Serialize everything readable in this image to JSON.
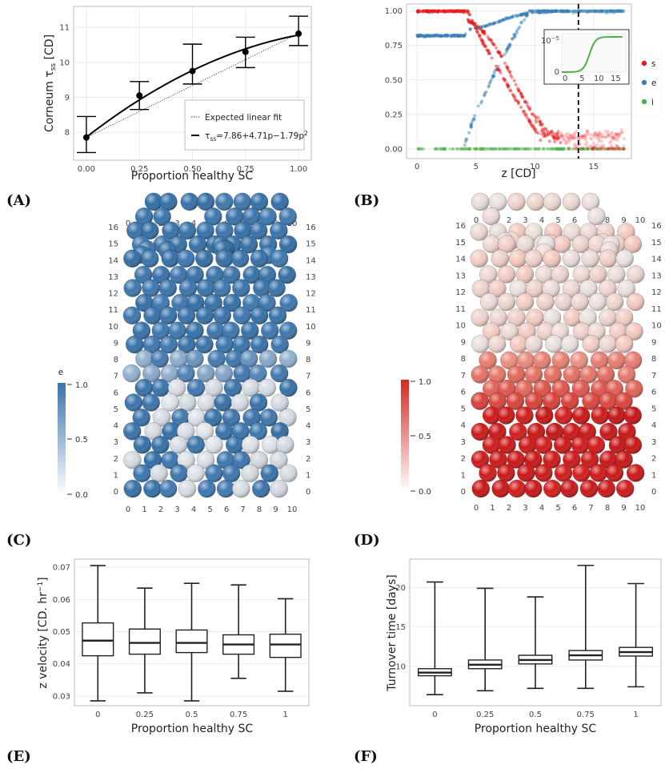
{
  "panel_labels": [
    "(A)",
    "(B)",
    "(C)",
    "(D)",
    "(E)",
    "(F)"
  ],
  "colors": {
    "s": "#e41a1c",
    "e": "#377eb8",
    "i": "#4daf4a",
    "e_scale_top": "#3a73ac",
    "s_scale_top": "#d42a22"
  },
  "chart_data": [
    {
      "id": "A",
      "type": "scatter",
      "xlabel": "Proportion healthy SC",
      "ylabel": "Corneum τ",
      "ylabel_sub": "ss",
      "ylabel_unit": "[CD]",
      "x": [
        0.0,
        0.25,
        0.5,
        0.75,
        1.0
      ],
      "y": [
        7.85,
        9.05,
        9.75,
        10.3,
        10.82
      ],
      "err_low": [
        7.42,
        8.65,
        9.38,
        9.85,
        10.48
      ],
      "err_high": [
        8.45,
        9.45,
        10.52,
        10.72,
        11.32
      ],
      "xticks": [
        "0.00",
        "0.25",
        "0.50",
        "0.75",
        "1.00"
      ],
      "yticks": [
        "8",
        "9",
        "10",
        "11"
      ],
      "xlim": [
        -0.06,
        1.06
      ],
      "ylim": [
        7.2,
        11.6
      ],
      "fit": {
        "c0": 7.86,
        "c1": 4.71,
        "c2": -1.79
      },
      "legend": {
        "linear": "Expected linear fit",
        "quad_prefix": "τ",
        "quad_sub": "ss",
        "quad_suffix": "=7.86+4.71p−1.79p",
        "quad_sup": "2"
      }
    },
    {
      "id": "B",
      "type": "scatter",
      "xlabel": "z [CD]",
      "xticks": [
        "0",
        "5",
        "10",
        "15"
      ],
      "yticks": [
        "0.00",
        "0.25",
        "0.50",
        "0.75",
        "1.00"
      ],
      "xlim": [
        -0.9,
        18.2
      ],
      "ylim": [
        -0.07,
        1.05
      ],
      "vline_x": 13.7,
      "series_names": [
        "s",
        "e",
        "i"
      ],
      "inset": {
        "ytick_top": "10",
        "ytick_top_exp": "−5",
        "ytick_bottom": "0",
        "xticks": [
          "0",
          "5",
          "10",
          "15"
        ]
      }
    },
    {
      "id": "C",
      "type": "heatmap",
      "scalar": "e",
      "scale_ticks": [
        "1.0",
        "0.5",
        "0.0"
      ],
      "x_axis_ticks": [
        "0",
        "1",
        "2",
        "3",
        "4",
        "5",
        "6",
        "7",
        "8",
        "9",
        "10"
      ],
      "y_axis_ticks": [
        "0",
        "1",
        "2",
        "3",
        "4",
        "5",
        "6",
        "7",
        "8",
        "9",
        "10",
        "11",
        "12",
        "13",
        "14",
        "15",
        "16"
      ]
    },
    {
      "id": "D",
      "type": "heatmap",
      "scalar": "s",
      "scale_ticks": [
        "1.0",
        "0.5",
        "0.0"
      ],
      "x_axis_ticks": [
        "0",
        "1",
        "2",
        "3",
        "4",
        "5",
        "6",
        "7",
        "8",
        "9",
        "10"
      ],
      "y_axis_ticks": [
        "0",
        "1",
        "2",
        "3",
        "4",
        "5",
        "6",
        "7",
        "8",
        "9",
        "10",
        "11",
        "12",
        "13",
        "14",
        "15",
        "16"
      ]
    },
    {
      "id": "E",
      "type": "bar",
      "xlabel": "Proportion healthy SC",
      "ylabel": "z velocity [CD. hr",
      "ylabel_sup": "−1",
      "ylabel_end": "]",
      "categories": [
        "0",
        "0.25",
        "0.5",
        "0.75",
        "1"
      ],
      "yticks": [
        "0.03",
        "0.04",
        "0.05",
        "0.06",
        "0.07"
      ],
      "ylim": [
        0.027,
        0.0725
      ],
      "boxes": [
        {
          "min": 0.0285,
          "q1": 0.0425,
          "median": 0.0472,
          "q3": 0.0527,
          "max": 0.0705
        },
        {
          "min": 0.031,
          "q1": 0.043,
          "median": 0.0465,
          "q3": 0.0508,
          "max": 0.0635
        },
        {
          "min": 0.0285,
          "q1": 0.0435,
          "median": 0.0465,
          "q3": 0.0505,
          "max": 0.065
        },
        {
          "min": 0.0355,
          "q1": 0.043,
          "median": 0.046,
          "q3": 0.049,
          "max": 0.0645
        },
        {
          "min": 0.0315,
          "q1": 0.042,
          "median": 0.046,
          "q3": 0.0492,
          "max": 0.0602
        }
      ]
    },
    {
      "id": "F",
      "type": "bar",
      "xlabel": "Proportion healthy SC",
      "ylabel": "Turnover time [days]",
      "categories": [
        "0",
        "0.25",
        "0.5",
        "0.75",
        "1"
      ],
      "yticks": [
        "10",
        "15",
        "20"
      ],
      "ylim": [
        5.0,
        23.6
      ],
      "boxes": [
        {
          "min": 6.4,
          "q1": 8.8,
          "median": 9.2,
          "q3": 9.7,
          "max": 20.7
        },
        {
          "min": 6.9,
          "q1": 9.7,
          "median": 10.2,
          "q3": 10.8,
          "max": 19.9
        },
        {
          "min": 7.2,
          "q1": 10.3,
          "median": 10.8,
          "q3": 11.4,
          "max": 18.8
        },
        {
          "min": 7.2,
          "q1": 10.8,
          "median": 11.4,
          "q3": 12.0,
          "max": 22.8
        },
        {
          "min": 7.4,
          "q1": 11.3,
          "median": 11.8,
          "q3": 12.4,
          "max": 20.5
        }
      ]
    }
  ]
}
